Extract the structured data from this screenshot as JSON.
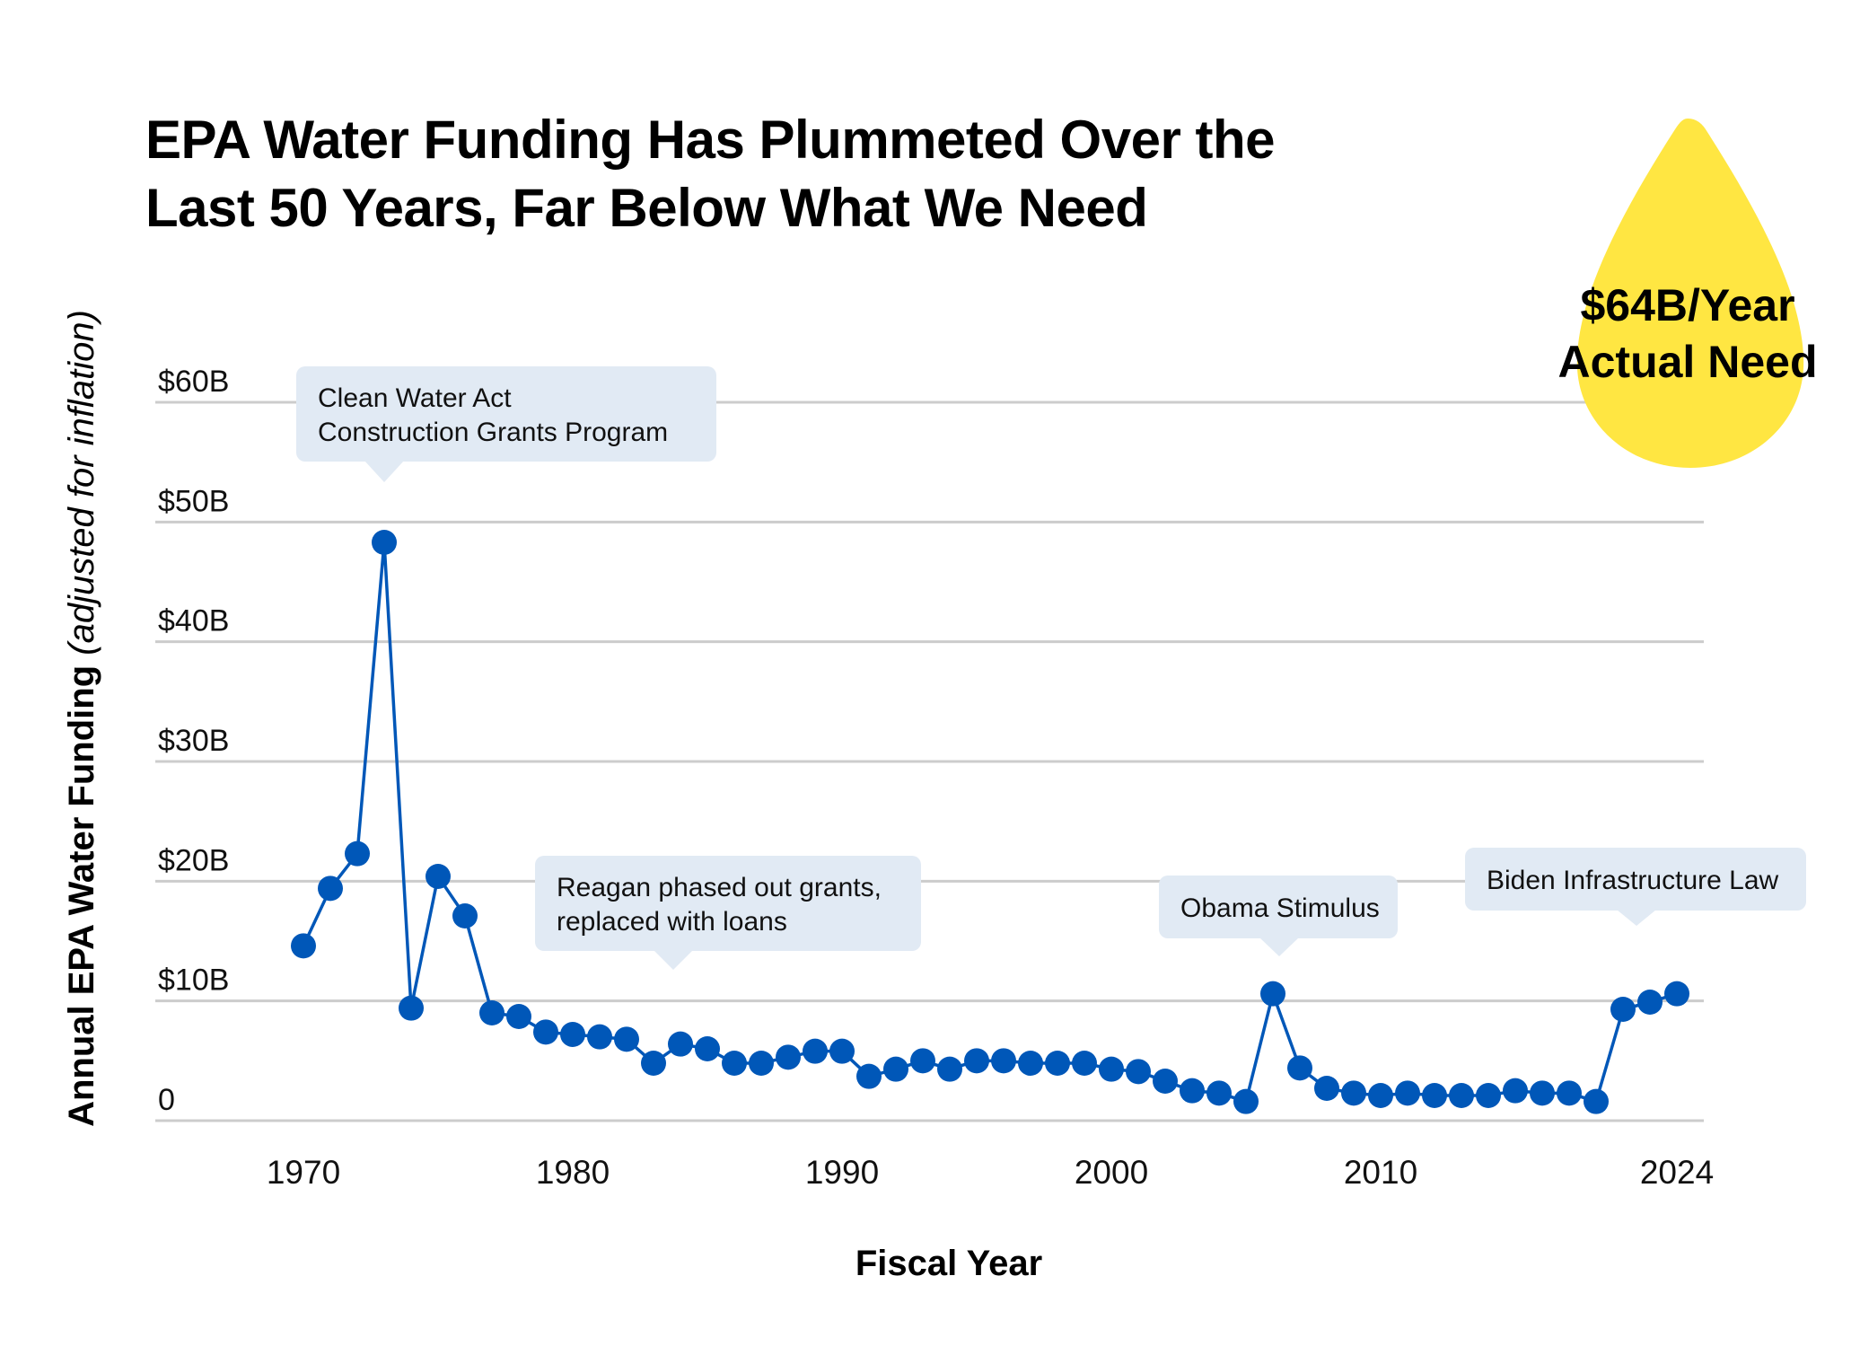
{
  "title": {
    "line1": "EPA Water Funding Has Plummeted Over the",
    "line2": "Last 50 Years, Far Below What We Need"
  },
  "callout": {
    "line1": "$64B/Year",
    "line2": "Actual Need",
    "value_billions": 64,
    "color": "#FFE642"
  },
  "colors": {
    "series": "#0057B8",
    "grid": "#CCCCCC",
    "annotation_bg": "#E1EAF4"
  },
  "chart_data": {
    "type": "line",
    "title": "EPA Water Funding Has Plummeted Over the Last 50 Years, Far Below What We Need",
    "xlabel": "Fiscal Year",
    "ylabel_main": "Annual EPA Water Funding",
    "ylabel_note": "(adjusted for inflation)",
    "ylim": [
      0,
      60
    ],
    "yticks": [
      0,
      10,
      20,
      30,
      40,
      50,
      60
    ],
    "ytick_labels": [
      "0",
      "$10B",
      "$20B",
      "$30B",
      "$40B",
      "$50B",
      "$60B"
    ],
    "grid": true,
    "xticks_index": [
      0,
      10,
      20,
      30,
      40,
      51
    ],
    "xtick_labels": [
      "1970",
      "1980",
      "1990",
      "2000",
      "2010",
      "2024"
    ],
    "series": [
      {
        "name": "Annual EPA Water Funding ($B, inflation-adjusted)",
        "values": [
          14.6,
          19.4,
          22.3,
          48.3,
          9.4,
          20.4,
          17.1,
          9.0,
          8.7,
          7.4,
          7.2,
          7.0,
          6.8,
          4.8,
          6.4,
          6.0,
          4.8,
          4.8,
          5.3,
          5.8,
          5.8,
          3.7,
          4.3,
          5.0,
          4.3,
          5.0,
          5.0,
          4.8,
          4.8,
          4.8,
          4.3,
          4.1,
          3.3,
          2.5,
          2.3,
          1.6,
          10.6,
          4.4,
          2.7,
          2.3,
          2.1,
          2.3,
          2.1,
          2.1,
          2.1,
          2.5,
          2.3,
          2.3,
          1.6,
          9.3,
          9.9,
          10.6
        ]
      }
    ],
    "annotations": [
      {
        "lines": [
          "Clean Water Act",
          "Construction Grants Program"
        ],
        "point_index": 3
      },
      {
        "lines": [
          "Reagan phased out grants,",
          "replaced with loans"
        ],
        "point_index": 13
      },
      {
        "lines": [
          "Obama Stimulus"
        ],
        "point_index": 36
      },
      {
        "lines": [
          "Biden Infrastructure Law"
        ],
        "point_index": 49
      }
    ]
  }
}
